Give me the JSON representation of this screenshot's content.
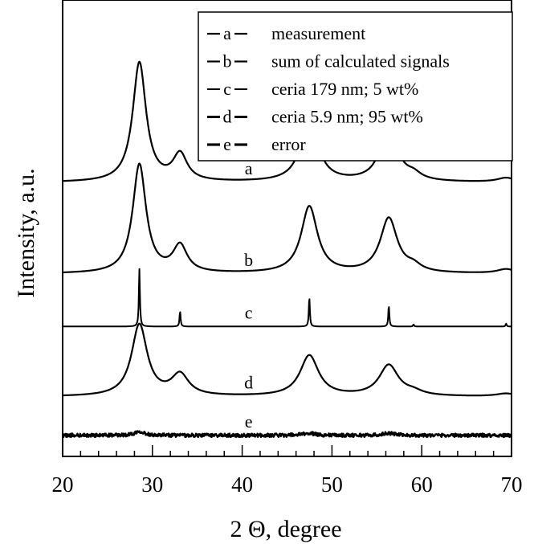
{
  "chart_data": {
    "type": "line",
    "title": "",
    "xlabel": "2 Θ, degree",
    "ylabel": "Intensity, a.u.",
    "xlim": [
      20,
      70
    ],
    "x_ticks": [
      "20",
      "30",
      "40",
      "50",
      "60",
      "70"
    ],
    "y_ticks": [],
    "grid": false,
    "legend_position": "top-right",
    "y_units": "arbitrary units, curves vertically offset",
    "series": [
      {
        "id": "a",
        "label": "a",
        "name": "measurement",
        "offset": 3.9,
        "stroke": 2.2,
        "peaks": [
          {
            "pos": 28.55,
            "height": 1.7,
            "width": 0.9
          },
          {
            "pos": 33.08,
            "height": 0.38,
            "width": 0.95
          },
          {
            "pos": 47.48,
            "height": 0.95,
            "width": 1.1
          },
          {
            "pos": 56.33,
            "height": 0.78,
            "width": 1.15
          },
          {
            "pos": 59.09,
            "height": 0.08,
            "width": 1.0
          },
          {
            "pos": 69.4,
            "height": 0.06,
            "width": 1.2
          }
        ]
      },
      {
        "id": "b",
        "label": "b",
        "name": "sum of calculated signals",
        "offset": 2.6,
        "stroke": 2.2,
        "peaks": [
          {
            "pos": 28.55,
            "height": 1.55,
            "width": 0.9
          },
          {
            "pos": 33.08,
            "height": 0.38,
            "width": 0.95
          },
          {
            "pos": 47.48,
            "height": 0.95,
            "width": 1.1
          },
          {
            "pos": 56.33,
            "height": 0.78,
            "width": 1.15
          },
          {
            "pos": 59.09,
            "height": 0.08,
            "width": 1.0
          },
          {
            "pos": 69.4,
            "height": 0.06,
            "width": 1.2
          }
        ]
      },
      {
        "id": "c",
        "label": "c",
        "name": "ceria 179 nm; 5 wt%",
        "offset": 1.85,
        "stroke": 2.0,
        "peaks": [
          {
            "pos": 28.55,
            "height": 0.82,
            "width": 0.07
          },
          {
            "pos": 33.08,
            "height": 0.22,
            "width": 0.07
          },
          {
            "pos": 47.48,
            "height": 0.42,
            "width": 0.07
          },
          {
            "pos": 56.33,
            "height": 0.3,
            "width": 0.07
          },
          {
            "pos": 59.09,
            "height": 0.03,
            "width": 0.07
          },
          {
            "pos": 69.4,
            "height": 0.04,
            "width": 0.07
          }
        ]
      },
      {
        "id": "d",
        "label": "d",
        "name": "ceria 5.9 nm; 95 wt%",
        "offset": 0.85,
        "stroke": 2.2,
        "peaks": [
          {
            "pos": 28.55,
            "height": 1.02,
            "width": 1.05
          },
          {
            "pos": 33.08,
            "height": 0.3,
            "width": 1.15
          },
          {
            "pos": 47.48,
            "height": 0.58,
            "width": 1.25
          },
          {
            "pos": 56.33,
            "height": 0.44,
            "width": 1.3
          },
          {
            "pos": 59.09,
            "height": 0.05,
            "width": 1.2
          },
          {
            "pos": 69.4,
            "height": 0.04,
            "width": 1.3
          }
        ]
      },
      {
        "id": "e",
        "label": "e",
        "name": "error",
        "offset": 0.3,
        "stroke": 2.4,
        "noise": 0.025,
        "peaks": [
          {
            "pos": 28.55,
            "height": 0.06,
            "width": 0.6
          },
          {
            "pos": 47.48,
            "height": 0.03,
            "width": 0.8
          },
          {
            "pos": 56.33,
            "height": 0.03,
            "width": 0.8
          }
        ]
      }
    ]
  }
}
